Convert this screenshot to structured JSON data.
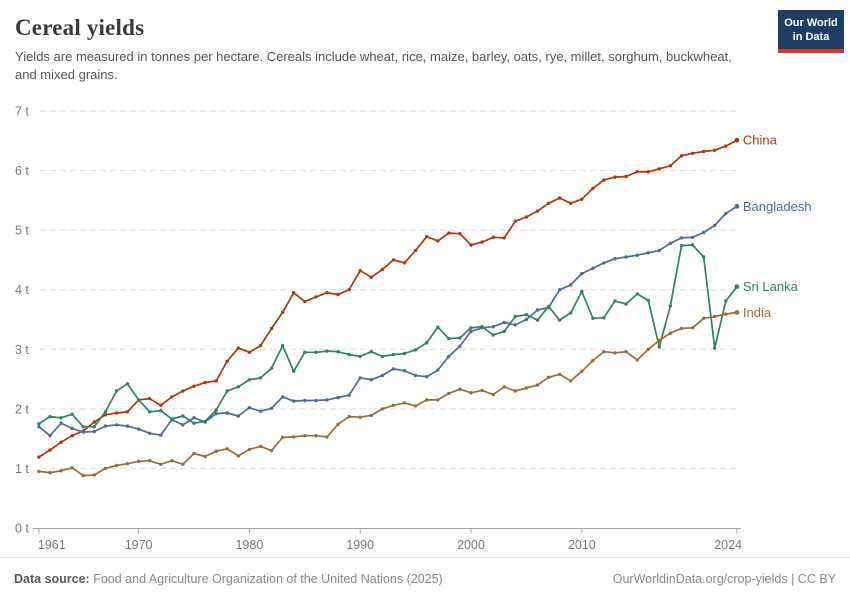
{
  "header": {
    "title": "Cereal yields",
    "subtitle": "Yields are measured in tonnes per hectare. Cereals include wheat, rice, maize, barley, oats, rye, millet, sorghum, buckwheat, and mixed grains.",
    "logo": {
      "line1": "Our World",
      "line2": "in Data",
      "bg_color": "#1D3D63",
      "accent_color": "#D8352C"
    }
  },
  "footer": {
    "source_label": "Data source:",
    "source_text": " Food and Agriculture Organization of the United Nations (2025)",
    "link": "OurWorldinData.org/crop-yields",
    "license": " | CC BY"
  },
  "chart_data": {
    "type": "line",
    "title": "Cereal yields",
    "unit": "tonnes per hectare",
    "ylim": [
      0,
      7
    ],
    "yticks": [
      0,
      1,
      2,
      3,
      4,
      5,
      6,
      7
    ],
    "ytick_suffix": " t",
    "xticks": [
      1961,
      1970,
      1980,
      1990,
      2000,
      2010,
      2024
    ],
    "grid": "dashed horizontal",
    "legend": "end-of-line labels",
    "grid_color": "#dcdcdc",
    "axis_color": "#a5a5a5",
    "tick_label_color": "#787878",
    "x": [
      1961,
      1962,
      1963,
      1964,
      1965,
      1966,
      1967,
      1968,
      1969,
      1970,
      1971,
      1972,
      1973,
      1974,
      1975,
      1976,
      1977,
      1978,
      1979,
      1980,
      1981,
      1982,
      1983,
      1984,
      1985,
      1986,
      1987,
      1988,
      1989,
      1990,
      1991,
      1992,
      1993,
      1994,
      1995,
      1996,
      1997,
      1998,
      1999,
      2000,
      2001,
      2002,
      2003,
      2004,
      2005,
      2006,
      2007,
      2008,
      2009,
      2010,
      2011,
      2012,
      2013,
      2014,
      2015,
      2016,
      2017,
      2018,
      2019,
      2020,
      2021,
      2022,
      2023,
      2024
    ],
    "series": [
      {
        "name": "China",
        "color": "#B13507",
        "values": [
          1.19,
          1.31,
          1.44,
          1.55,
          1.63,
          1.78,
          1.9,
          1.93,
          1.95,
          2.15,
          2.17,
          2.06,
          2.2,
          2.3,
          2.38,
          2.44,
          2.47,
          2.8,
          3.02,
          2.95,
          3.06,
          3.35,
          3.62,
          3.95,
          3.8,
          3.88,
          3.95,
          3.92,
          4.0,
          4.32,
          4.21,
          4.34,
          4.5,
          4.45,
          4.66,
          4.89,
          4.82,
          4.95,
          4.94,
          4.75,
          4.8,
          4.88,
          4.87,
          5.15,
          5.22,
          5.32,
          5.45,
          5.54,
          5.45,
          5.52,
          5.7,
          5.84,
          5.89,
          5.9,
          5.98,
          5.98,
          6.03,
          6.08,
          6.25,
          6.29,
          6.32,
          6.34,
          6.41,
          6.51
        ]
      },
      {
        "name": "Bangladesh",
        "color": "#4C6A9C",
        "values": [
          1.7,
          1.55,
          1.76,
          1.67,
          1.61,
          1.62,
          1.71,
          1.73,
          1.71,
          1.66,
          1.59,
          1.56,
          1.82,
          1.73,
          1.85,
          1.78,
          1.92,
          1.93,
          1.88,
          2.02,
          1.96,
          2.01,
          2.2,
          2.13,
          2.14,
          2.14,
          2.15,
          2.19,
          2.23,
          2.52,
          2.49,
          2.56,
          2.67,
          2.64,
          2.56,
          2.54,
          2.65,
          2.88,
          3.05,
          3.3,
          3.36,
          3.38,
          3.45,
          3.41,
          3.5,
          3.66,
          3.7,
          4.0,
          4.08,
          4.27,
          4.36,
          4.45,
          4.52,
          4.55,
          4.58,
          4.62,
          4.66,
          4.78,
          4.87,
          4.88,
          4.96,
          5.08,
          5.28,
          5.4
        ]
      },
      {
        "name": "Sri Lanka",
        "color": "#2C8465",
        "values": [
          1.75,
          1.87,
          1.85,
          1.91,
          1.7,
          1.7,
          1.95,
          2.3,
          2.42,
          2.15,
          1.95,
          1.97,
          1.83,
          1.88,
          1.76,
          1.79,
          1.98,
          2.3,
          2.37,
          2.49,
          2.52,
          2.68,
          3.06,
          2.63,
          2.95,
          2.95,
          2.97,
          2.96,
          2.91,
          2.88,
          2.96,
          2.88,
          2.91,
          2.93,
          2.99,
          3.11,
          3.37,
          3.18,
          3.19,
          3.36,
          3.38,
          3.24,
          3.3,
          3.55,
          3.58,
          3.49,
          3.72,
          3.49,
          3.61,
          3.97,
          3.52,
          3.53,
          3.81,
          3.76,
          3.93,
          3.82,
          3.04,
          3.73,
          4.74,
          4.75,
          4.55,
          3.02,
          3.81,
          4.05
        ]
      },
      {
        "name": "India",
        "color": "#9E6A38",
        "values": [
          0.95,
          0.93,
          0.96,
          1.01,
          0.88,
          0.89,
          1.0,
          1.05,
          1.08,
          1.12,
          1.13,
          1.07,
          1.13,
          1.07,
          1.25,
          1.2,
          1.29,
          1.33,
          1.21,
          1.32,
          1.37,
          1.3,
          1.52,
          1.53,
          1.55,
          1.55,
          1.53,
          1.74,
          1.87,
          1.86,
          1.89,
          2.0,
          2.06,
          2.1,
          2.05,
          2.15,
          2.15,
          2.26,
          2.33,
          2.27,
          2.31,
          2.24,
          2.37,
          2.3,
          2.35,
          2.4,
          2.53,
          2.58,
          2.47,
          2.63,
          2.81,
          2.96,
          2.94,
          2.96,
          2.82,
          3.0,
          3.15,
          3.27,
          3.35,
          3.36,
          3.52,
          3.55,
          3.59,
          3.62
        ]
      }
    ]
  }
}
